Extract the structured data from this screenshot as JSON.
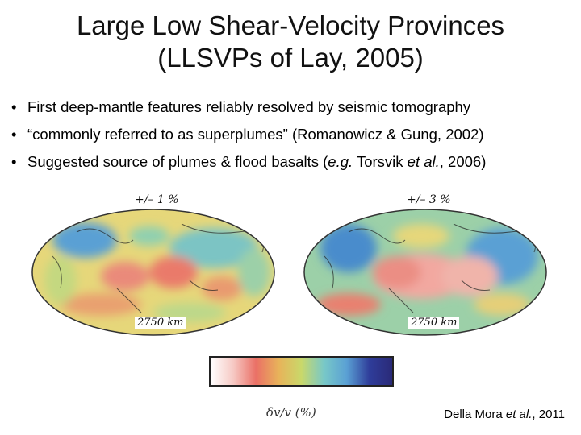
{
  "title": {
    "line1": "Large Low Shear-Velocity Provinces",
    "line2": "(LLSVPs of Lay, 2005)"
  },
  "bullets": {
    "marker": "•",
    "b1": "First deep-mantle features reliably resolved by seismic tomography",
    "b2": "“commonly referred to as superplumes” (Romanowicz & Gung, 2002)",
    "b3_pre": "Suggested source of plumes & flood basalts (",
    "b3_eg": "e.g.",
    "b3_mid": " Torsvik ",
    "b3_etal": "et al.",
    "b3_post": ", 2006)"
  },
  "maps": {
    "left_scale": "+/– 1 %",
    "right_scale": "+/– 3 %",
    "left_depth": "2750 km",
    "right_depth": "2750 km"
  },
  "colorbar": {
    "label": "δv/v (%)",
    "colors": [
      "#ffffff",
      "#f6c9c4",
      "#ea7066",
      "#e8b35a",
      "#c9d86a",
      "#78c8c8",
      "#5aa0d4",
      "#2f3d9a",
      "#2a2a78"
    ]
  },
  "citation": {
    "author": "Della Mora ",
    "etal": "et al.",
    "year": ", 2011"
  }
}
